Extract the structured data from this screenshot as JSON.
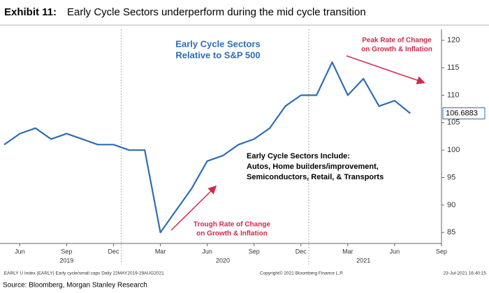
{
  "chart_data": {
    "type": "line",
    "exhibit": "Exhibit 11:",
    "title": "Early Cycle Sectors underperform during the mid cycle transition",
    "x": [
      "2019-05",
      "2019-06",
      "2019-07",
      "2019-08",
      "2019-09",
      "2019-10",
      "2019-11",
      "2019-12",
      "2020-01",
      "2020-02",
      "2020-03",
      "2020-04",
      "2020-05",
      "2020-06",
      "2020-07",
      "2020-08",
      "2020-09",
      "2020-10",
      "2020-11",
      "2020-12",
      "2021-01",
      "2021-02",
      "2021-03",
      "2021-04",
      "2021-05",
      "2021-06",
      "2021-07"
    ],
    "series": [
      {
        "name": "Early Cycle Sectors Relative to S&P 500",
        "color": "#2e6db4",
        "values": [
          101,
          103,
          104,
          102,
          103,
          102,
          101,
          101,
          100,
          100,
          85,
          89,
          93,
          98,
          99,
          101,
          102,
          104,
          108,
          110,
          110,
          116,
          110,
          113,
          108,
          109,
          106.6883
        ]
      }
    ],
    "xlim": [
      "2019-05",
      "2021-09"
    ],
    "xticks": [
      {
        "value": "2019-06",
        "label": "Jun"
      },
      {
        "value": "2019-09",
        "label": "Sep"
      },
      {
        "value": "2019-12",
        "label": "Dec"
      },
      {
        "value": "2020-03",
        "label": "Mar"
      },
      {
        "value": "2020-06",
        "label": "Jun"
      },
      {
        "value": "2020-09",
        "label": "Sep"
      },
      {
        "value": "2020-12",
        "label": "Dec"
      },
      {
        "value": "2021-03",
        "label": "Mar"
      },
      {
        "value": "2021-06",
        "label": "Jun"
      },
      {
        "value": "2021-09",
        "label": "Sep"
      }
    ],
    "year_labels": [
      {
        "value": "2019-09",
        "label": "2019"
      },
      {
        "value": "2020-07",
        "label": "2020"
      },
      {
        "value": "2021-04",
        "label": "2021"
      }
    ],
    "ylim": [
      83,
      122
    ],
    "yticks": [
      85,
      90,
      95,
      100,
      105,
      110,
      115,
      120
    ],
    "grid": false,
    "annotations": {
      "series_title": [
        "Early Cycle Sectors",
        "Relative to S&P 500"
      ],
      "peak": [
        "Peak Rate of Change",
        "on Growth & Inflation"
      ],
      "trough": [
        "Trough Rate of Change",
        "on Growth & Inflation"
      ],
      "include": [
        "Early Cycle Sectors Include:",
        "Autos, Home builders/improvement,",
        "Semiconductors, Retail, & Transports"
      ]
    },
    "footer": [
      ".EARLY U Index (EARLY) Early cycle/small caps  Daily 22MAY2019-29AUG2021",
      "Copyright© 2021 Bloomberg Finance L.P.",
      "23-Jul-2021 16:40:15"
    ],
    "source": "Source: Bloomberg, Morgan Stanley Research"
  }
}
